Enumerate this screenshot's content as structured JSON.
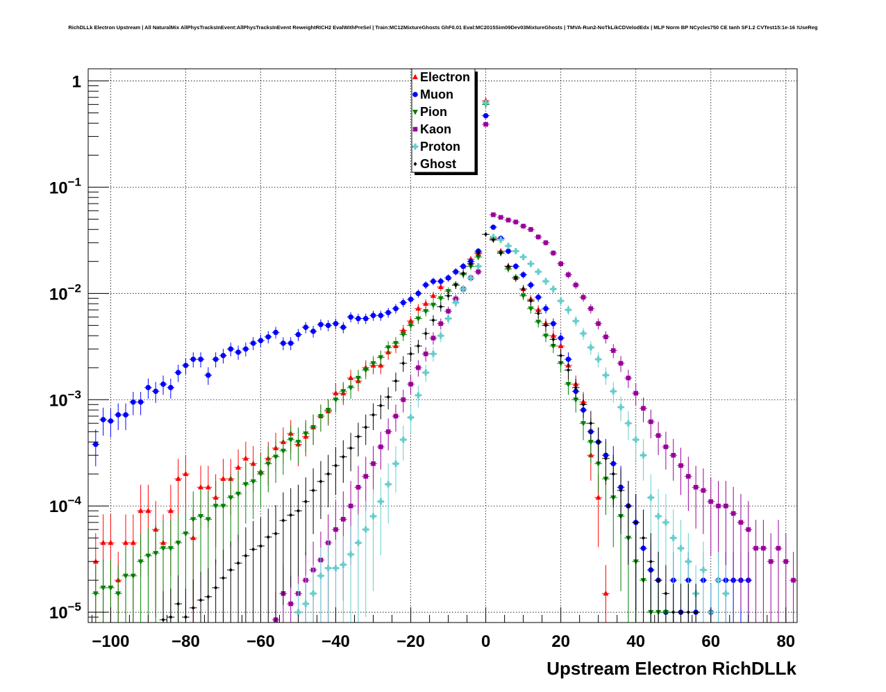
{
  "chart_data": {
    "type": "scatter",
    "title": "RichDLLk Electron Upstream | All NaturalMix AllPhysTracksInEvent:AllPhysTracksInEvent ReweightRICH2 EvalWithPreSel | Train:MC12MixtureGhosts GhF0.01 Eval:MC2015Sim09Dev03MixtureGhosts | TMVA-Run2-NoTkLikCDVelodEdx | MLP Norm BP NCycles750 CE tanh SF1.2 CVTest15:1e-16 !UseReg",
    "xlabel": "Upstream Electron RichDLLk",
    "ylabel": "",
    "xlim": [
      -106,
      83
    ],
    "ylim": [
      8e-06,
      1.3
    ],
    "y_scale": "log",
    "grid": true,
    "legend_position": "top-center",
    "x_ticks": [
      -100,
      -80,
      -60,
      -40,
      -20,
      0,
      20,
      40,
      60,
      80
    ],
    "x_tick_labels": [
      "−100",
      "−80",
      "−60",
      "−40",
      "−20",
      "0",
      "20",
      "40",
      "60",
      "80"
    ],
    "y_ticks": [
      {
        "value": 1,
        "base": "1",
        "exp": ""
      },
      {
        "value": 0.1,
        "base": "10",
        "exp": "−1"
      },
      {
        "value": 0.01,
        "base": "10",
        "exp": "−2"
      },
      {
        "value": 0.001,
        "base": "10",
        "exp": "−3"
      },
      {
        "value": 0.0001,
        "base": "10",
        "exp": "−4"
      },
      {
        "value": 1e-05,
        "base": "10",
        "exp": "−5"
      }
    ],
    "series": [
      {
        "name": "Electron",
        "color": "#ff0000",
        "marker": "triangle-up",
        "x": [
          -104,
          -102,
          -100,
          -98,
          -96,
          -94,
          -92,
          -90,
          -88,
          -86,
          -84,
          -82,
          -80,
          -78,
          -76,
          -74,
          -72,
          -70,
          -68,
          -66,
          -64,
          -62,
          -60,
          -58,
          -56,
          -54,
          -52,
          -50,
          -48,
          -46,
          -44,
          -42,
          -40,
          -38,
          -36,
          -34,
          -32,
          -30,
          -28,
          -26,
          -24,
          -22,
          -20,
          -18,
          -16,
          -14,
          -12,
          -10,
          -8,
          -6,
          -4,
          -2,
          0,
          2,
          4,
          6,
          8,
          10,
          12,
          14,
          16,
          18,
          20,
          22,
          24,
          26,
          28,
          30,
          32
        ],
        "y": [
          3e-05,
          4.5e-05,
          4.5e-05,
          2e-05,
          4.5e-05,
          4.5e-05,
          9e-05,
          9e-05,
          6e-05,
          4.5e-05,
          9e-05,
          0.00018,
          0.0002,
          5e-05,
          0.00015,
          0.00015,
          0.00012,
          0.00018,
          0.00018,
          0.00023,
          0.00028,
          0.00025,
          0.00021,
          0.00028,
          0.00035,
          0.0004,
          0.00048,
          0.00038,
          0.00045,
          0.00055,
          0.0007,
          0.00078,
          0.00115,
          0.00115,
          0.0016,
          0.0015,
          0.002,
          0.0021,
          0.0021,
          0.0028,
          0.0032,
          0.0045,
          0.0055,
          0.0072,
          0.008,
          0.0095,
          0.0115,
          0.014,
          0.016,
          0.018,
          0.021,
          0.024,
          0.65,
          0.033,
          0.025,
          0.018,
          0.014,
          0.011,
          0.0088,
          0.007,
          0.0052,
          0.004,
          0.0032,
          0.0021,
          0.0014,
          0.00095,
          0.0003,
          0.00012,
          1.5e-05
        ]
      },
      {
        "name": "Muon",
        "color": "#0000ff",
        "marker": "circle",
        "x": [
          -104,
          -102,
          -100,
          -98,
          -96,
          -94,
          -92,
          -90,
          -88,
          -86,
          -84,
          -82,
          -80,
          -78,
          -76,
          -74,
          -72,
          -70,
          -68,
          -66,
          -64,
          -62,
          -60,
          -58,
          -56,
          -54,
          -52,
          -50,
          -48,
          -46,
          -44,
          -42,
          -40,
          -38,
          -36,
          -34,
          -32,
          -30,
          -28,
          -26,
          -24,
          -22,
          -20,
          -18,
          -16,
          -14,
          -12,
          -10,
          -8,
          -6,
          -4,
          -2,
          0,
          2,
          4,
          6,
          8,
          10,
          12,
          14,
          16,
          18,
          20,
          22,
          24,
          26,
          28,
          30,
          32,
          34,
          36,
          38,
          40,
          42,
          44,
          46,
          48,
          50,
          52,
          54,
          56,
          58,
          60,
          62,
          64,
          66,
          68,
          70
        ],
        "y": [
          0.00038,
          0.00065,
          0.00063,
          0.00072,
          0.00072,
          0.00095,
          0.00095,
          0.0013,
          0.0012,
          0.0014,
          0.0013,
          0.0018,
          0.0021,
          0.0024,
          0.0024,
          0.0017,
          0.0024,
          0.0026,
          0.003,
          0.0028,
          0.003,
          0.0034,
          0.0036,
          0.0039,
          0.0043,
          0.0034,
          0.0034,
          0.0041,
          0.0048,
          0.0044,
          0.0051,
          0.005,
          0.0052,
          0.0048,
          0.006,
          0.0058,
          0.0058,
          0.0062,
          0.0062,
          0.0066,
          0.0072,
          0.0082,
          0.0088,
          0.01,
          0.012,
          0.013,
          0.013,
          0.014,
          0.016,
          0.018,
          0.02,
          0.025,
          0.47,
          0.042,
          0.033,
          0.025,
          0.018,
          0.015,
          0.012,
          0.0092,
          0.0072,
          0.0052,
          0.0038,
          0.0024,
          0.0012,
          0.0008,
          0.0005,
          0.0004,
          0.0003,
          0.00025,
          0.00015,
          0.0001,
          7e-05,
          4e-05,
          2.5e-05,
          2e-05,
          1e-05,
          2e-05,
          1e-05,
          2e-05,
          1e-05,
          2e-05,
          1e-05,
          2e-05,
          2e-05,
          2e-05,
          2e-05,
          2e-05
        ]
      },
      {
        "name": "Pion",
        "color": "#008000",
        "marker": "triangle-down",
        "x": [
          -104,
          -102,
          -100,
          -98,
          -96,
          -94,
          -92,
          -90,
          -88,
          -86,
          -84,
          -82,
          -80,
          -78,
          -76,
          -74,
          -72,
          -70,
          -68,
          -66,
          -64,
          -62,
          -60,
          -58,
          -56,
          -54,
          -52,
          -50,
          -48,
          -46,
          -44,
          -42,
          -40,
          -38,
          -36,
          -34,
          -32,
          -30,
          -28,
          -26,
          -24,
          -22,
          -20,
          -18,
          -16,
          -14,
          -12,
          -10,
          -8,
          -6,
          -4,
          -2,
          0,
          2,
          4,
          6,
          8,
          10,
          12,
          14,
          16,
          18,
          20,
          22,
          24,
          26,
          28,
          30,
          32,
          34,
          36,
          38,
          40,
          42,
          44,
          46,
          48
        ],
        "y": [
          1.5e-05,
          1.7e-05,
          1.7e-05,
          1.5e-05,
          2.2e-05,
          2.2e-05,
          3e-05,
          3.4e-05,
          3.6e-05,
          4e-05,
          4e-05,
          4.5e-05,
          5.5e-05,
          7.5e-05,
          8e-05,
          7.5e-05,
          0.0001,
          0.0001,
          0.00012,
          0.00013,
          0.00016,
          0.00017,
          0.0002,
          0.00025,
          0.00029,
          0.00033,
          0.00042,
          0.0004,
          0.00048,
          0.00055,
          0.0007,
          0.0008,
          0.001,
          0.0012,
          0.0013,
          0.0016,
          0.0019,
          0.0022,
          0.0025,
          0.0031,
          0.0034,
          0.0041,
          0.005,
          0.0058,
          0.0068,
          0.0078,
          0.009,
          0.0105,
          0.012,
          0.015,
          0.018,
          0.022,
          0.6,
          0.032,
          0.024,
          0.017,
          0.014,
          0.0095,
          0.0072,
          0.0054,
          0.004,
          0.0032,
          0.0022,
          0.0014,
          0.001,
          0.0006,
          0.0004,
          0.00025,
          0.00018,
          0.00012,
          8e-05,
          5e-05,
          3e-05,
          2e-05,
          1e-05,
          1e-05,
          1e-05
        ]
      },
      {
        "name": "Kaon",
        "color": "#990099",
        "marker": "square",
        "x": [
          -56,
          -54,
          -52,
          -50,
          -48,
          -46,
          -44,
          -42,
          -40,
          -38,
          -36,
          -34,
          -32,
          -30,
          -28,
          -26,
          -24,
          -22,
          -20,
          -18,
          -16,
          -14,
          -12,
          -10,
          -8,
          -6,
          -4,
          -2,
          0,
          2,
          4,
          6,
          8,
          10,
          12,
          14,
          16,
          18,
          20,
          22,
          24,
          26,
          28,
          30,
          32,
          34,
          36,
          38,
          40,
          42,
          44,
          46,
          48,
          50,
          52,
          54,
          56,
          58,
          60,
          62,
          64,
          66,
          68,
          70,
          72,
          74,
          76,
          78,
          80,
          82
        ],
        "y": [
          8.5e-06,
          1.5e-05,
          1.2e-05,
          1.5e-05,
          2e-05,
          2.5e-05,
          3.1e-05,
          4.5e-05,
          6e-05,
          7.5e-05,
          0.0001,
          0.00015,
          0.00019,
          0.00025,
          0.00036,
          0.0005,
          0.0007,
          0.001,
          0.0014,
          0.002,
          0.0027,
          0.0038,
          0.0052,
          0.0068,
          0.0089,
          0.011,
          0.014,
          0.016,
          0.39,
          0.055,
          0.052,
          0.049,
          0.047,
          0.043,
          0.04,
          0.034,
          0.03,
          0.024,
          0.019,
          0.015,
          0.012,
          0.0092,
          0.0072,
          0.0052,
          0.0039,
          0.0029,
          0.0022,
          0.0016,
          0.00115,
          0.00083,
          0.00062,
          0.00046,
          0.00036,
          0.0003,
          0.00024,
          0.00019,
          0.00015,
          0.00014,
          0.00011,
          0.0001,
          0.0001,
          8.5e-05,
          7e-05,
          6e-05,
          4e-05,
          4e-05,
          3e-05,
          4e-05,
          3e-05,
          2e-05
        ]
      },
      {
        "name": "Proton",
        "color": "#66cccc",
        "marker": "cross",
        "x": [
          -50,
          -48,
          -46,
          -44,
          -42,
          -40,
          -38,
          -36,
          -34,
          -32,
          -30,
          -28,
          -26,
          -24,
          -22,
          -20,
          -18,
          -16,
          -14,
          -12,
          -10,
          -8,
          -6,
          -4,
          -2,
          0,
          2,
          4,
          6,
          8,
          10,
          12,
          14,
          16,
          18,
          20,
          22,
          24,
          26,
          28,
          30,
          32,
          34,
          36,
          38,
          40,
          42,
          44,
          46,
          48,
          50,
          52,
          54,
          56,
          58,
          60,
          62,
          64
        ],
        "y": [
          1e-05,
          1.2e-05,
          1.5e-05,
          2.2e-05,
          2.6e-05,
          2.6e-05,
          2.8e-05,
          3.5e-05,
          4.5e-05,
          6e-05,
          8e-05,
          0.00011,
          0.00016,
          0.00025,
          0.00042,
          0.00068,
          0.0011,
          0.0018,
          0.0027,
          0.004,
          0.0058,
          0.0082,
          0.011,
          0.014,
          0.018,
          0.62,
          0.034,
          0.032,
          0.028,
          0.025,
          0.022,
          0.019,
          0.016,
          0.013,
          0.011,
          0.0085,
          0.007,
          0.0055,
          0.0042,
          0.0031,
          0.0024,
          0.0017,
          0.0012,
          0.00085,
          0.0006,
          0.00042,
          0.0003,
          0.00012,
          8e-05,
          7e-05,
          5e-05,
          4e-05,
          3e-05,
          1.5e-05,
          2.5e-05,
          1e-05,
          2e-05,
          1.5e-05
        ]
      },
      {
        "name": "Ghost",
        "color": "#000000",
        "marker": "small-diamond",
        "x": [
          -86,
          -84,
          -82,
          -80,
          -78,
          -76,
          -74,
          -72,
          -70,
          -68,
          -66,
          -64,
          -62,
          -60,
          -58,
          -56,
          -54,
          -52,
          -50,
          -48,
          -46,
          -44,
          -42,
          -40,
          -38,
          -36,
          -34,
          -32,
          -30,
          -28,
          -26,
          -24,
          -22,
          -20,
          -18,
          -16,
          -14,
          -12,
          -10,
          -8,
          -6,
          -4,
          -2,
          0,
          2,
          4,
          6,
          8,
          10,
          12,
          14,
          16,
          18,
          20,
          22,
          24,
          26,
          28,
          30,
          32,
          34,
          36,
          38,
          40,
          42,
          44,
          46,
          48,
          50,
          52,
          54,
          56
        ],
        "y": [
          8.5e-06,
          9e-06,
          1.2e-05,
          9e-06,
          1.1e-05,
          1.3e-05,
          1.4e-05,
          1.7e-05,
          2.1e-05,
          2.5e-05,
          2.9e-05,
          3.4e-05,
          3.9e-05,
          4.2e-05,
          5.1e-05,
          5.5e-05,
          7.3e-05,
          8.2e-05,
          9e-05,
          0.00011,
          0.00014,
          0.00017,
          0.0002,
          0.00024,
          0.00029,
          0.00035,
          0.00045,
          0.00055,
          0.00072,
          0.00088,
          0.00106,
          0.0015,
          0.0022,
          0.0027,
          0.0032,
          0.0042,
          0.0056,
          0.0075,
          0.0095,
          0.012,
          0.0155,
          0.019,
          0.024,
          0.036,
          0.032,
          0.024,
          0.018,
          0.014,
          0.011,
          0.0085,
          0.0065,
          0.005,
          0.0037,
          0.0026,
          0.0019,
          0.0013,
          0.0009,
          0.0006,
          0.0004,
          0.00028,
          0.0002,
          0.00014,
          0.0001,
          7e-05,
          5e-05,
          3e-05,
          2e-05,
          1.5e-05,
          1e-05,
          1e-05,
          1e-05,
          1e-05
        ]
      }
    ]
  }
}
